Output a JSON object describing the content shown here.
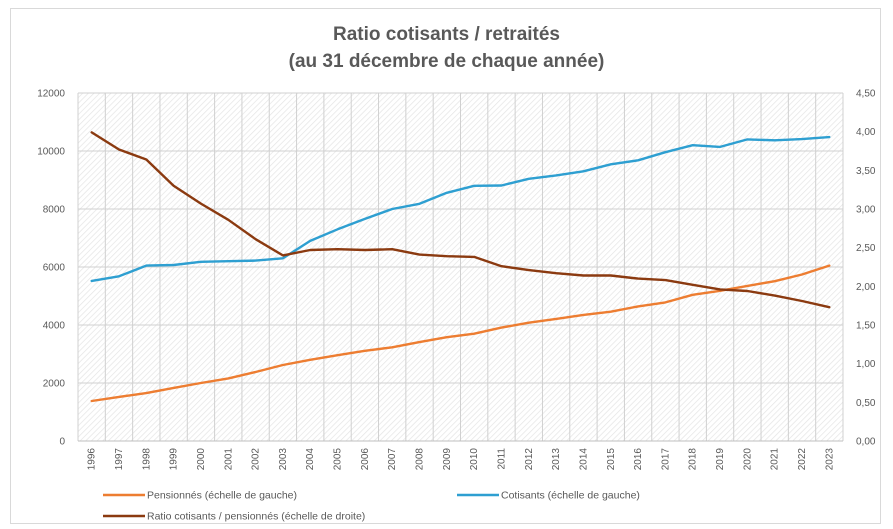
{
  "chart_data": {
    "type": "line",
    "title": "Ratio cotisants / retraités",
    "subtitle": "(au 31 décembre de chaque année)",
    "categories": [
      "1996",
      "1997",
      "1998",
      "1999",
      "2000",
      "2001",
      "2002",
      "2003",
      "2004",
      "2005",
      "2006",
      "2007",
      "2008",
      "2009",
      "2010",
      "2011",
      "2012",
      "2013",
      "2014",
      "2015",
      "2016",
      "2017",
      "2018",
      "2019",
      "2020",
      "2021",
      "2022",
      "2023"
    ],
    "y_left": {
      "range": [
        0,
        12000
      ],
      "ticks": [
        "0",
        "2000",
        "4000",
        "6000",
        "8000",
        "10000",
        "12000"
      ]
    },
    "y_right": {
      "range": [
        0,
        4.5
      ],
      "ticks": [
        "0,00",
        "0,50",
        "1,00",
        "1,50",
        "2,00",
        "2,50",
        "3,00",
        "3,50",
        "4,00",
        "4,50"
      ]
    },
    "grid": true,
    "legend_position": "bottom",
    "series": [
      {
        "name": "Pensionnés (échelle de gauche)",
        "axis": "left",
        "color": "#ED7D31",
        "values": [
          1380,
          1520,
          1650,
          1830,
          2000,
          2160,
          2380,
          2620,
          2800,
          2960,
          3110,
          3230,
          3410,
          3580,
          3700,
          3910,
          4080,
          4210,
          4350,
          4460,
          4640,
          4780,
          5040,
          5180,
          5350,
          5510,
          5740,
          6050
        ]
      },
      {
        "name": "Cotisants (échelle de gauche)",
        "axis": "left",
        "color": "#2E9FD1",
        "values": [
          5520,
          5680,
          6050,
          6070,
          6180,
          6200,
          6220,
          6300,
          6900,
          7300,
          7660,
          8000,
          8180,
          8560,
          8800,
          8810,
          9040,
          9160,
          9300,
          9540,
          9680,
          9960,
          10200,
          10140,
          10400,
          10370,
          10410,
          10480
        ]
      },
      {
        "name": "Ratio cotisants / pensionnés (échelle de droite)",
        "axis": "right",
        "color": "#8B3A10",
        "values": [
          3.99,
          3.77,
          3.64,
          3.3,
          3.07,
          2.86,
          2.61,
          2.4,
          2.47,
          2.48,
          2.47,
          2.48,
          2.41,
          2.39,
          2.38,
          2.26,
          2.21,
          2.17,
          2.14,
          2.14,
          2.1,
          2.08,
          2.02,
          1.96,
          1.94,
          1.88,
          1.81,
          1.73
        ]
      }
    ]
  }
}
